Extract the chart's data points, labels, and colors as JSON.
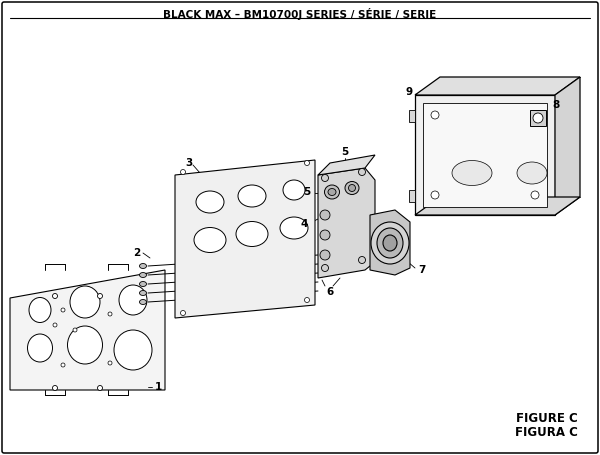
{
  "title": "BLACK MAX – BM10700J SERIES / SÉRIE / SERIE",
  "figure_label": "FIGURE C",
  "figura_label": "FIGURA C",
  "bg_color": "#ffffff",
  "line_color": "#000000",
  "gray_light": "#e8e8e8",
  "gray_mid": "#d0d0d0",
  "gray_dark": "#b0b0b0"
}
